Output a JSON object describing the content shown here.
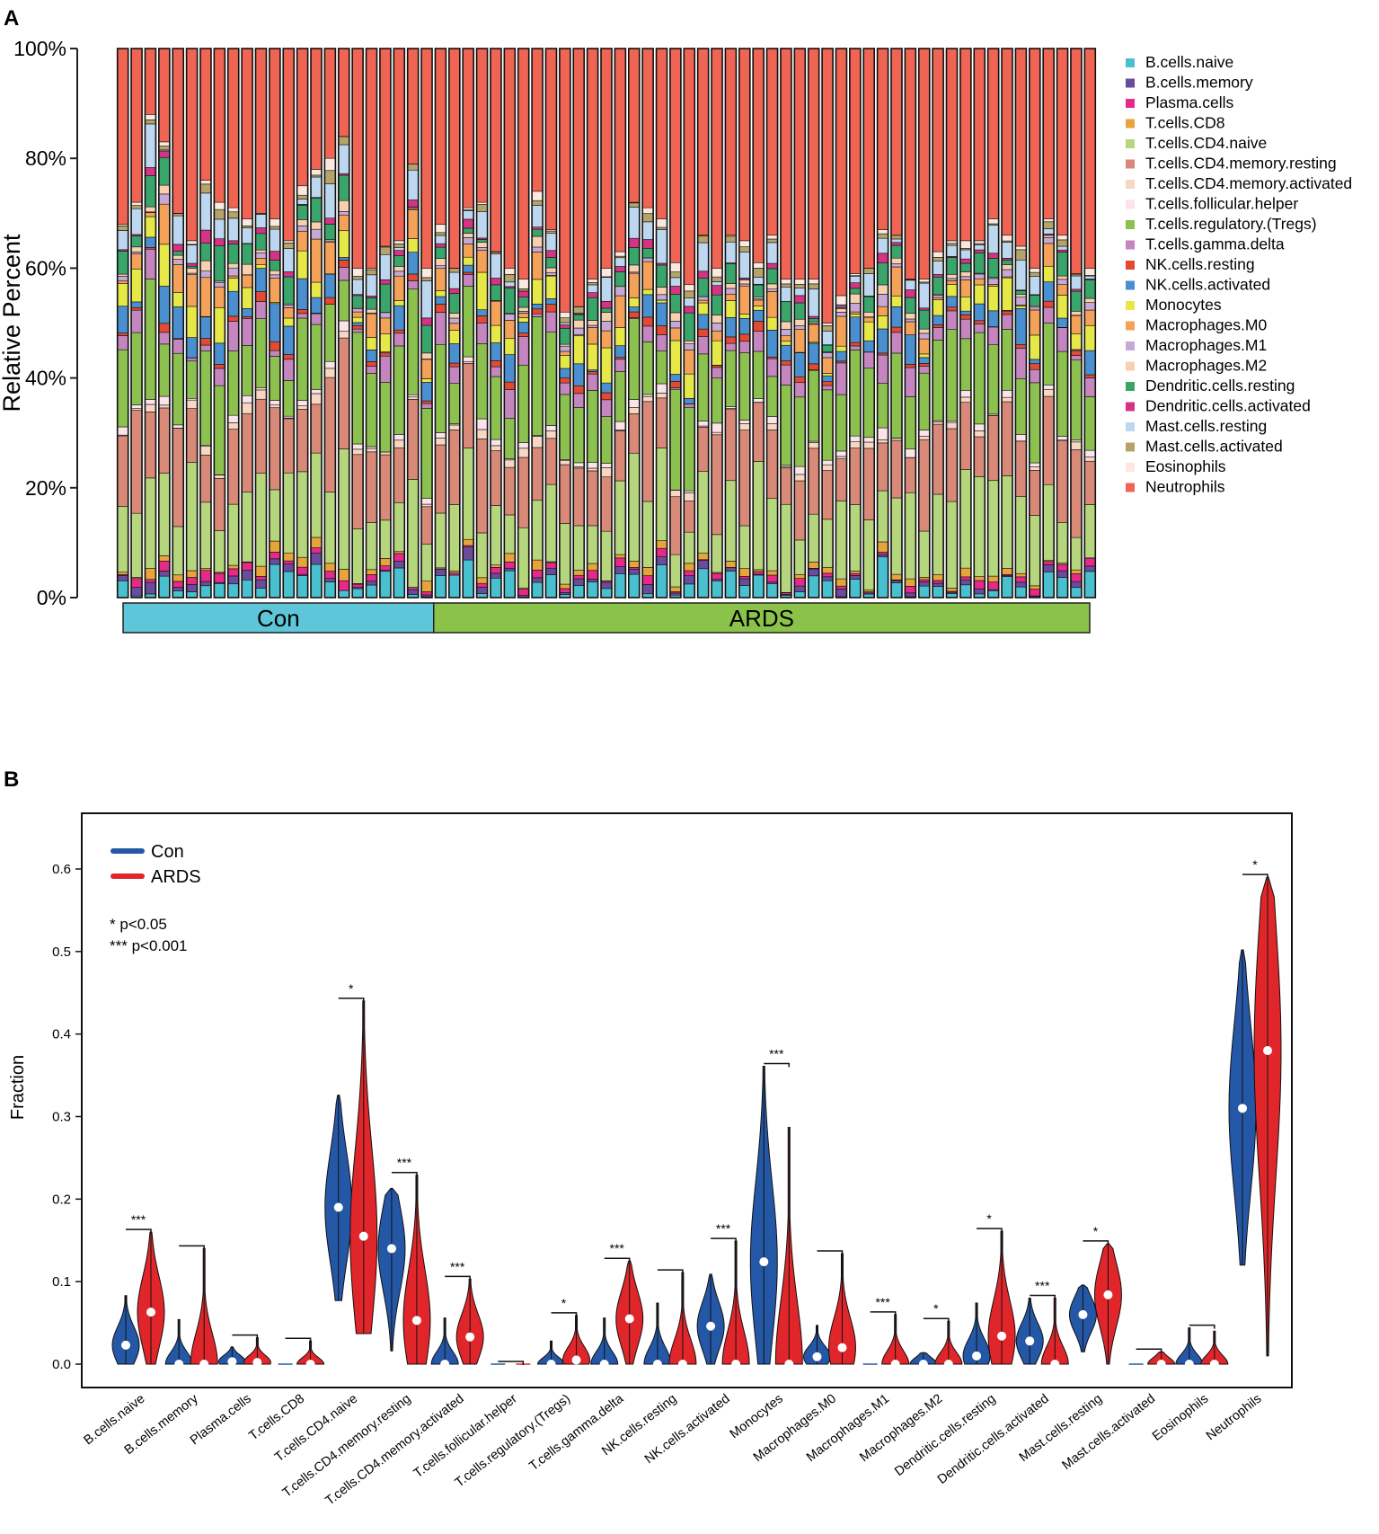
{
  "panel_a_label": "A",
  "panel_b_label": "B",
  "chart_data": [
    {
      "type": "bar",
      "stacked": true,
      "ylabel": "Relative Percent",
      "yticks": [
        "0%",
        "20%",
        "40%",
        "60%",
        "80%",
        "100%"
      ],
      "ylim": [
        0,
        100
      ],
      "groups": [
        {
          "name": "Con",
          "n": 23,
          "color": "#5ec6d8"
        },
        {
          "name": "ARDS",
          "n": 48,
          "color": "#8bc34a"
        }
      ],
      "legend": [
        {
          "name": "B.cells.naive",
          "color": "#49c0cf"
        },
        {
          "name": "B.cells.memory",
          "color": "#6a4c9c"
        },
        {
          "name": "Plasma.cells",
          "color": "#e7298a"
        },
        {
          "name": "T.cells.CD8",
          "color": "#e6a43a"
        },
        {
          "name": "T.cells.CD4.naive",
          "color": "#b5d67c"
        },
        {
          "name": "T.cells.CD4.memory.resting",
          "color": "#d98977"
        },
        {
          "name": "T.cells.CD4.memory.activated",
          "color": "#f7d7c4"
        },
        {
          "name": "T.cells.follicular.helper",
          "color": "#fbe3ea"
        },
        {
          "name": "T.cells.regulatory.(Tregs)",
          "color": "#8cc04f"
        },
        {
          "name": "T.cells.gamma.delta",
          "color": "#c586c0"
        },
        {
          "name": "NK.cells.resting",
          "color": "#e34a33"
        },
        {
          "name": "NK.cells.activated",
          "color": "#4a90d0"
        },
        {
          "name": "Monocytes",
          "color": "#e6e847"
        },
        {
          "name": "Macrophages.M0",
          "color": "#f4a259"
        },
        {
          "name": "Macrophages.M1",
          "color": "#c7a9d6"
        },
        {
          "name": "Macrophages.M2",
          "color": "#f8d0b0"
        },
        {
          "name": "Dendritic.cells.resting",
          "color": "#3aa56b"
        },
        {
          "name": "Dendritic.cells.activated",
          "color": "#d63384"
        },
        {
          "name": "Mast.cells.resting",
          "color": "#bcd7ef"
        },
        {
          "name": "Mast.cells.activated",
          "color": "#b5a36a"
        },
        {
          "name": "Eosinophils",
          "color": "#fbe9e0"
        },
        {
          "name": "Neutrophils",
          "color": "#ef6452"
        }
      ],
      "samples_top_of_non_neutrophil": [
        68,
        72,
        88,
        83,
        70,
        65,
        76,
        72,
        71,
        69,
        70,
        69,
        65,
        75,
        78,
        80,
        84,
        60,
        60,
        64,
        65,
        79,
        60,
        68,
        60,
        71,
        72,
        63,
        60,
        58,
        74,
        67,
        52,
        53,
        58,
        60,
        63,
        72,
        71,
        69,
        61,
        57,
        66,
        60,
        66,
        65,
        61,
        66,
        58,
        58,
        58,
        50,
        55,
        59,
        60,
        67,
        66,
        58,
        58,
        63,
        65,
        65,
        65,
        69,
        66,
        64,
        60,
        69,
        66,
        59,
        60
      ]
    },
    {
      "type": "violin",
      "ylabel": "Fraction",
      "ylim": [
        0,
        0.65
      ],
      "yticks": [
        "0.0",
        "0.1",
        "0.2",
        "0.3",
        "0.4",
        "0.5",
        "0.6"
      ],
      "legend": [
        {
          "name": "Con",
          "color": "#2557a7"
        },
        {
          "name": "ARDS",
          "color": "#e0262a"
        }
      ],
      "sig_notes": [
        "* p<0.05",
        "*** p<0.001"
      ],
      "categories": [
        {
          "name": "B.cells.naive",
          "con": {
            "min": 0,
            "max": 0.083,
            "median": 0.023
          },
          "ards": {
            "min": 0,
            "max": 0.16,
            "median": 0.063
          },
          "sig": "***"
        },
        {
          "name": "B.cells.memory",
          "con": {
            "min": 0,
            "max": 0.054,
            "median": 0.0
          },
          "ards": {
            "min": 0,
            "max": 0.14,
            "median": 0.0
          },
          "sig": ""
        },
        {
          "name": "Plasma.cells",
          "con": {
            "min": 0,
            "max": 0.021,
            "median": 0.003
          },
          "ards": {
            "min": 0,
            "max": 0.032,
            "median": 0.002
          },
          "sig": ""
        },
        {
          "name": "T.cells.CD8",
          "con": {
            "min": 0,
            "max": 0.0,
            "median": 0.0
          },
          "ards": {
            "min": 0,
            "max": 0.028,
            "median": 0.0
          },
          "sig": ""
        },
        {
          "name": "T.cells.CD4.naive",
          "con": {
            "min": 0.077,
            "max": 0.326,
            "median": 0.19
          },
          "ards": {
            "min": 0.037,
            "max": 0.44,
            "median": 0.155
          },
          "sig": "*"
        },
        {
          "name": "T.cells.CD4.memory.resting",
          "con": {
            "min": 0.016,
            "max": 0.213,
            "median": 0.14
          },
          "ards": {
            "min": 0,
            "max": 0.229,
            "median": 0.053
          },
          "sig": "***"
        },
        {
          "name": "T.cells.CD4.memory.activated",
          "con": {
            "min": 0,
            "max": 0.056,
            "median": 0.0
          },
          "ards": {
            "min": 0,
            "max": 0.103,
            "median": 0.033
          },
          "sig": "***"
        },
        {
          "name": "T.cells.follicular.helper",
          "con": {
            "min": 0,
            "max": 0.0,
            "median": 0.0
          },
          "ards": {
            "min": 0,
            "max": 0.0,
            "median": 0.0
          },
          "sig": ""
        },
        {
          "name": "T.cells.regulatory.(Tregs)",
          "con": {
            "min": 0,
            "max": 0.028,
            "median": 0.0
          },
          "ards": {
            "min": 0,
            "max": 0.059,
            "median": 0.005
          },
          "sig": "*"
        },
        {
          "name": "T.cells.gamma.delta",
          "con": {
            "min": 0,
            "max": 0.056,
            "median": 0.0
          },
          "ards": {
            "min": 0,
            "max": 0.125,
            "median": 0.055
          },
          "sig": "***"
        },
        {
          "name": "NK.cells.resting",
          "con": {
            "min": 0,
            "max": 0.074,
            "median": 0.0
          },
          "ards": {
            "min": 0,
            "max": 0.111,
            "median": 0.0
          },
          "sig": ""
        },
        {
          "name": "NK.cells.activated",
          "con": {
            "min": 0,
            "max": 0.109,
            "median": 0.046
          },
          "ards": {
            "min": 0,
            "max": 0.149,
            "median": 0.0
          },
          "sig": "***"
        },
        {
          "name": "Monocytes",
          "con": {
            "min": 0,
            "max": 0.361,
            "median": 0.124
          },
          "ards": {
            "min": 0,
            "max": 0.287,
            "median": 0.0
          },
          "sig": "***"
        },
        {
          "name": "Macrophages.M0",
          "con": {
            "min": 0,
            "max": 0.047,
            "median": 0.009
          },
          "ards": {
            "min": 0,
            "max": 0.134,
            "median": 0.02
          },
          "sig": ""
        },
        {
          "name": "Macrophages.M1",
          "con": {
            "min": 0,
            "max": 0.0,
            "median": 0.0
          },
          "ards": {
            "min": 0,
            "max": 0.06,
            "median": 0.0
          },
          "sig": "***"
        },
        {
          "name": "Macrophages.M2",
          "con": {
            "min": 0,
            "max": 0.014,
            "median": 0.0
          },
          "ards": {
            "min": 0,
            "max": 0.052,
            "median": 0.0
          },
          "sig": "*"
        },
        {
          "name": "Dendritic.cells.resting",
          "con": {
            "min": 0,
            "max": 0.074,
            "median": 0.01
          },
          "ards": {
            "min": 0,
            "max": 0.161,
            "median": 0.034
          },
          "sig": "*"
        },
        {
          "name": "Dendritic.cells.activated",
          "con": {
            "min": 0,
            "max": 0.08,
            "median": 0.028
          },
          "ards": {
            "min": 0,
            "max": 0.08,
            "median": 0.0
          },
          "sig": "***"
        },
        {
          "name": "Mast.cells.resting",
          "con": {
            "min": 0.015,
            "max": 0.096,
            "median": 0.06
          },
          "ards": {
            "min": 0,
            "max": 0.146,
            "median": 0.084
          },
          "sig": "*"
        },
        {
          "name": "Mast.cells.activated",
          "con": {
            "min": 0,
            "max": 0.0,
            "median": 0.0
          },
          "ards": {
            "min": 0,
            "max": 0.015,
            "median": 0.0
          },
          "sig": ""
        },
        {
          "name": "Eosinophils",
          "con": {
            "min": 0,
            "max": 0.044,
            "median": 0.0
          },
          "ards": {
            "min": 0,
            "max": 0.04,
            "median": 0.0
          },
          "sig": ""
        },
        {
          "name": "Neutrophils",
          "con": {
            "min": 0.12,
            "max": 0.502,
            "median": 0.31
          },
          "ards": {
            "min": 0.01,
            "max": 0.59,
            "median": 0.38
          },
          "sig": "*"
        }
      ]
    }
  ]
}
